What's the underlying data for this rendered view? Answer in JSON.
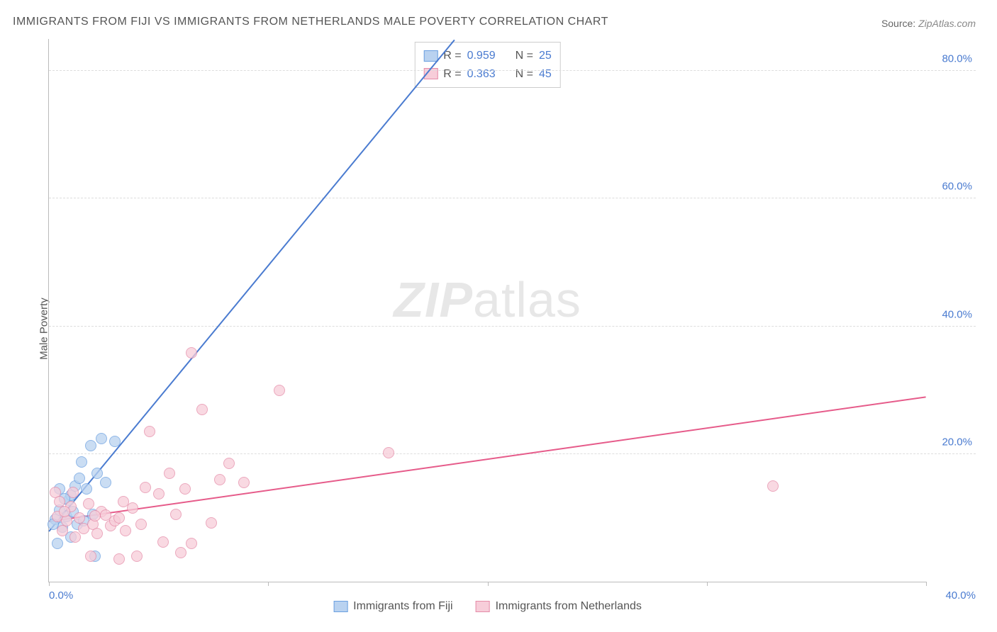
{
  "title": "IMMIGRANTS FROM FIJI VS IMMIGRANTS FROM NETHERLANDS MALE POVERTY CORRELATION CHART",
  "source_label": "Source:",
  "source_value": "ZipAtlas.com",
  "watermark_zip": "ZIP",
  "watermark_atlas": "atlas",
  "ylabel": "Male Poverty",
  "chart": {
    "type": "scatter",
    "xlim": [
      0,
      40
    ],
    "ylim": [
      0,
      85
    ],
    "x_ticks": [
      0,
      10,
      20,
      30,
      40
    ],
    "x_tick_labels": [
      "0.0%",
      "",
      "",
      "",
      "40.0%"
    ],
    "y_ticks": [
      20,
      40,
      60,
      80
    ],
    "y_tick_labels": [
      "20.0%",
      "40.0%",
      "60.0%",
      "80.0%"
    ],
    "background_color": "#ffffff",
    "grid_color": "#dddddd",
    "axis_color": "#bbbbbb",
    "tick_label_color": "#4a7bd0",
    "series": [
      {
        "name": "Immigrants from Fiji",
        "color_fill": "#b9d2f0",
        "color_stroke": "#6a9fe0",
        "R": "0.959",
        "N": "25",
        "trend": {
          "x1": 0,
          "y1": 8,
          "x2": 18.5,
          "y2": 85,
          "color": "#4a7bd0"
        },
        "points": [
          [
            0.3,
            9.8
          ],
          [
            0.5,
            11.2
          ],
          [
            0.6,
            8.5
          ],
          [
            0.8,
            10.2
          ],
          [
            0.9,
            12.8
          ],
          [
            1.0,
            13.5
          ],
          [
            1.1,
            11.0
          ],
          [
            1.2,
            15.0
          ],
          [
            1.3,
            9.0
          ],
          [
            1.4,
            16.2
          ],
          [
            1.5,
            18.8
          ],
          [
            1.7,
            14.5
          ],
          [
            1.9,
            21.3
          ],
          [
            2.0,
            10.5
          ],
          [
            2.2,
            17.0
          ],
          [
            2.4,
            22.4
          ],
          [
            2.6,
            15.5
          ],
          [
            1.0,
            7.0
          ],
          [
            0.4,
            6.0
          ],
          [
            3.0,
            22.0
          ],
          [
            0.7,
            13.0
          ],
          [
            2.1,
            4.0
          ],
          [
            1.6,
            9.5
          ],
          [
            0.2,
            9.0
          ],
          [
            0.5,
            14.5
          ]
        ]
      },
      {
        "name": "Immigrants from Netherlands",
        "color_fill": "#f7cdd9",
        "color_stroke": "#e58ba8",
        "R": "0.363",
        "N": "45",
        "trend": {
          "x1": 0,
          "y1": 9.5,
          "x2": 40,
          "y2": 29,
          "color": "#e65b8a"
        },
        "points": [
          [
            0.4,
            10.2
          ],
          [
            0.6,
            8.0
          ],
          [
            0.8,
            9.5
          ],
          [
            1.0,
            11.8
          ],
          [
            1.2,
            7.0
          ],
          [
            1.4,
            10.0
          ],
          [
            1.6,
            8.3
          ],
          [
            1.8,
            12.2
          ],
          [
            2.0,
            9.0
          ],
          [
            2.2,
            7.5
          ],
          [
            2.4,
            11.0
          ],
          [
            2.6,
            10.4
          ],
          [
            2.8,
            8.8
          ],
          [
            3.0,
            9.5
          ],
          [
            3.2,
            10.0
          ],
          [
            3.5,
            8.0
          ],
          [
            3.8,
            11.5
          ],
          [
            4.2,
            9.0
          ],
          [
            4.6,
            23.5
          ],
          [
            5.0,
            13.8
          ],
          [
            5.2,
            6.2
          ],
          [
            5.5,
            17.0
          ],
          [
            5.8,
            10.5
          ],
          [
            6.2,
            14.5
          ],
          [
            6.0,
            4.5
          ],
          [
            6.5,
            35.8
          ],
          [
            7.0,
            27.0
          ],
          [
            7.4,
            9.2
          ],
          [
            7.8,
            16.0
          ],
          [
            8.2,
            18.5
          ],
          [
            8.9,
            15.5
          ],
          [
            10.5,
            30.0
          ],
          [
            3.2,
            3.5
          ],
          [
            4.0,
            4.0
          ],
          [
            3.4,
            12.5
          ],
          [
            6.5,
            6.0
          ],
          [
            15.5,
            20.2
          ],
          [
            33.0,
            15.0
          ],
          [
            0.3,
            14.0
          ],
          [
            0.5,
            12.5
          ],
          [
            0.7,
            11.0
          ],
          [
            1.1,
            14.0
          ],
          [
            1.9,
            4.0
          ],
          [
            2.1,
            10.3
          ],
          [
            4.4,
            14.8
          ]
        ]
      }
    ],
    "marker_radius": 8,
    "marker_opacity": 0.75,
    "line_width": 2
  },
  "corr_legend_labels": {
    "R": "R",
    "eq": "=",
    "N": "N"
  }
}
